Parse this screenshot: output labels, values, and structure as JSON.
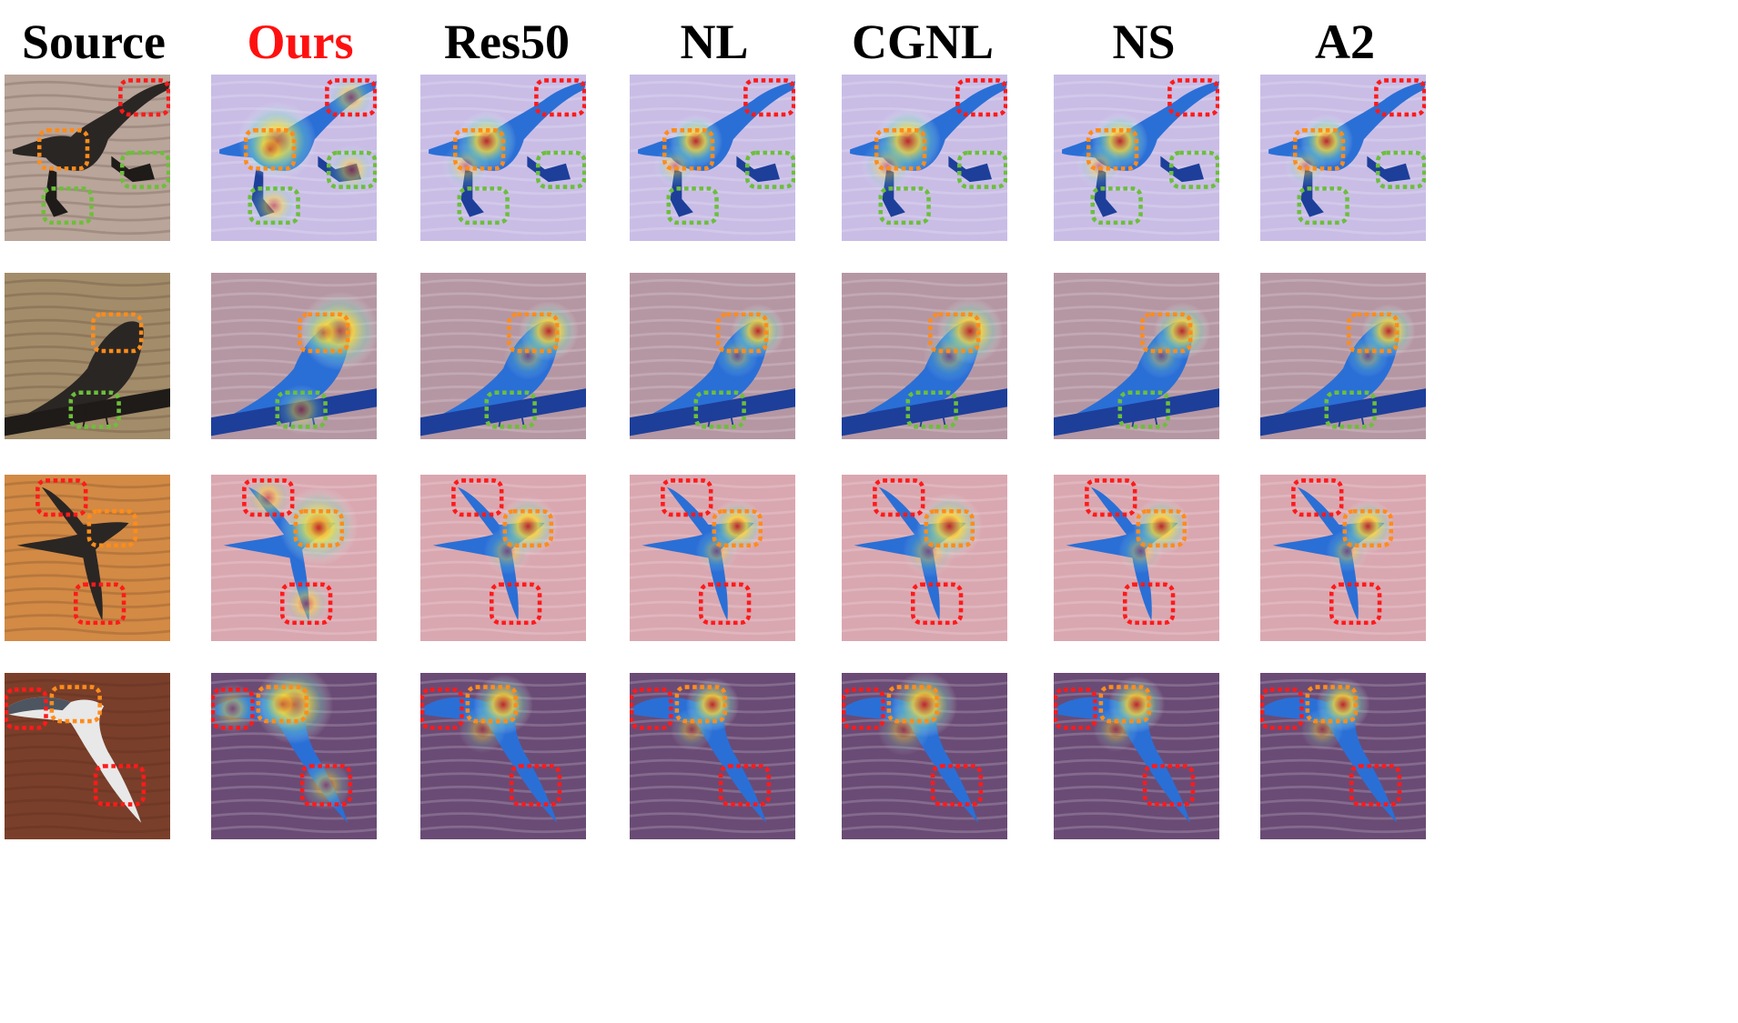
{
  "columns": [
    {
      "label": "Source",
      "highlight": false
    },
    {
      "label": "Ours",
      "highlight": true
    },
    {
      "label": "Res50",
      "highlight": false
    },
    {
      "label": "NL",
      "highlight": false
    },
    {
      "label": "CGNL",
      "highlight": false
    },
    {
      "label": "NS",
      "highlight": false
    },
    {
      "label": "A2",
      "highlight": false
    }
  ],
  "colors": {
    "header_text": "#000000",
    "header_highlight": "#ff1010",
    "box_red": "#ff1a1a",
    "box_orange": "#ff8c1a",
    "box_green": "#6cbf3a",
    "heat_hot": "#c81e1e",
    "heat_warm": "#ffe033",
    "heat_cool": "#2a6fd6"
  },
  "rows": [
    {
      "subject": "dark gull in flight over water, feet extended",
      "source_bg": "#b9a59a",
      "heat_bg": "#c9bde6"
    },
    {
      "subject": "black grackle perched on a pipe",
      "source_bg": "#a28c6a",
      "heat_bg": "#b597a3"
    },
    {
      "subject": "albatross gliding over orange-toned water",
      "source_bg": "#d28a45",
      "heat_bg": "#d9a7b0"
    },
    {
      "subject": "white albatross skimming dark waves",
      "source_bg": "#7a3f2a",
      "heat_bg": "#6a4b75"
    }
  ]
}
